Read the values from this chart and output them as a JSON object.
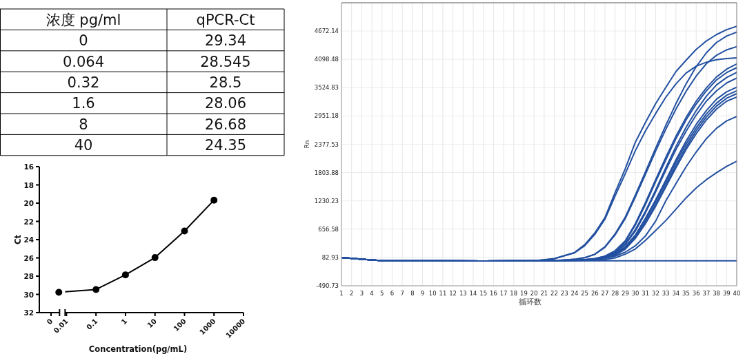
{
  "chart_data": [
    {
      "type": "other",
      "xlabel": "浓度 pg/ml",
      "ylabel": "qPCR-Ct",
      "categories": [
        "0",
        "0.064",
        "0.32",
        "1.6",
        "8",
        "40"
      ],
      "values": [
        29.34,
        28.545,
        28.5,
        28.06,
        26.68,
        24.35
      ],
      "data_labels": true
    },
    {
      "type": "line",
      "xlabel": "Concentration(pg/mL)",
      "ylabel": "Ct",
      "log": "x",
      "x": [
        0.0055,
        0.1,
        1,
        10,
        100,
        1000
      ],
      "values": [
        29.77,
        29.47,
        27.86,
        25.97,
        23.06,
        19.67
      ],
      "color": "#000000",
      "marker": "circle",
      "xlim": [
        0.0012,
        10000
      ],
      "xticks": [
        {
          "value": 0.003,
          "label": "0"
        },
        0.01,
        0.1,
        1,
        10,
        100,
        1000,
        10000
      ],
      "ylim": [
        32,
        16
      ],
      "yticks": [
        16,
        18,
        20,
        22,
        24,
        26,
        28,
        30,
        32
      ]
    },
    {
      "type": "line",
      "xlabel": "循环数",
      "ylabel": "Rn",
      "grid": true,
      "xlim": [
        1,
        40
      ],
      "ylim": [
        -490.73,
        5245.79
      ],
      "xticks": [
        1,
        2,
        3,
        4,
        5,
        6,
        7,
        8,
        9,
        10,
        11,
        12,
        13,
        14,
        15,
        16,
        17,
        18,
        19,
        20,
        21,
        22,
        23,
        24,
        25,
        26,
        27,
        28,
        29,
        30,
        31,
        32,
        33,
        34,
        35,
        36,
        37,
        38,
        39,
        40
      ],
      "yticks": [
        -490.73,
        82.93,
        656.58,
        1230.23,
        1803.88,
        2377.53,
        2951.18,
        3524.83,
        4098.48,
        4672.14
      ],
      "x": [
        1,
        3,
        5,
        10,
        15,
        20,
        22,
        24,
        25,
        26,
        27,
        28,
        29,
        30,
        31,
        32,
        33,
        34,
        35,
        36,
        37,
        38,
        39,
        40
      ],
      "series": [
        {
          "color": "#2350a0",
          "values": [
            83,
            45,
            20,
            15,
            12,
            15,
            60,
            185,
            341,
            581,
            893,
            1400,
            1880,
            2420,
            2820,
            3200,
            3530,
            3850,
            4080,
            4300,
            4470,
            4600,
            4700,
            4768
          ]
        },
        {
          "color": "#2350a0",
          "values": [
            83,
            45,
            20,
            15,
            12,
            15,
            55,
            175,
            320,
            550,
            860,
            1330,
            1780,
            2250,
            2650,
            3000,
            3330,
            3600,
            3820,
            3960,
            4040,
            4090,
            4115,
            4128
          ]
        },
        {
          "color": "#2350a0",
          "values": [
            83,
            45,
            20,
            15,
            12,
            15,
            20,
            45,
            80,
            150,
            300,
            560,
            900,
            1350,
            1820,
            2300,
            2760,
            3200,
            3600,
            3950,
            4230,
            4440,
            4570,
            4649
          ]
        },
        {
          "color": "#2350a0",
          "values": [
            83,
            45,
            20,
            15,
            12,
            15,
            20,
            45,
            78,
            145,
            290,
            540,
            870,
            1310,
            1770,
            2240,
            2680,
            3090,
            3450,
            3760,
            4010,
            4180,
            4290,
            4355
          ]
        },
        {
          "color": "#2350a0",
          "values": [
            83,
            45,
            20,
            15,
            12,
            15,
            20,
            30,
            40,
            60,
            110,
            220,
            420,
            770,
            1200,
            1660,
            2110,
            2540,
            2920,
            3250,
            3520,
            3740,
            3900,
            4004
          ]
        },
        {
          "color": "#2350a0",
          "values": [
            83,
            45,
            20,
            15,
            12,
            15,
            20,
            30,
            40,
            58,
            105,
            210,
            400,
            740,
            1160,
            1620,
            2060,
            2490,
            2870,
            3190,
            3460,
            3680,
            3830,
            3930
          ]
        },
        {
          "color": "#2350a0",
          "values": [
            83,
            45,
            20,
            15,
            12,
            15,
            20,
            28,
            36,
            52,
            95,
            190,
            360,
            650,
            1020,
            1450,
            1900,
            2330,
            2720,
            3060,
            3350,
            3580,
            3730,
            3834
          ]
        },
        {
          "color": "#2350a0",
          "values": [
            83,
            45,
            20,
            15,
            12,
            15,
            20,
            28,
            35,
            50,
            90,
            180,
            340,
            620,
            990,
            1410,
            1850,
            2270,
            2640,
            2970,
            3250,
            3460,
            3620,
            3720
          ]
        },
        {
          "color": "#2350a0",
          "values": [
            83,
            45,
            20,
            15,
            12,
            15,
            20,
            26,
            32,
            45,
            80,
            160,
            300,
            540,
            880,
            1250,
            1650,
            2060,
            2440,
            2780,
            3060,
            3290,
            3440,
            3534
          ]
        },
        {
          "color": "#2350a0",
          "values": [
            83,
            45,
            20,
            15,
            12,
            15,
            20,
            26,
            31,
            43,
            76,
            150,
            285,
            520,
            850,
            1220,
            1610,
            2010,
            2380,
            2710,
            2990,
            3210,
            3370,
            3460
          ]
        },
        {
          "color": "#2350a0",
          "values": [
            83,
            45,
            20,
            15,
            12,
            15,
            20,
            25,
            30,
            40,
            70,
            140,
            265,
            490,
            800,
            1160,
            1550,
            1950,
            2320,
            2650,
            2930,
            3150,
            3310,
            3403
          ]
        },
        {
          "color": "#2350a0",
          "values": [
            83,
            45,
            20,
            15,
            12,
            15,
            20,
            25,
            30,
            38,
            66,
            130,
            250,
            470,
            770,
            1120,
            1510,
            1900,
            2270,
            2590,
            2870,
            3090,
            3250,
            3336
          ]
        },
        {
          "color": "#2350a0",
          "values": [
            83,
            45,
            20,
            15,
            12,
            15,
            20,
            22,
            30,
            45,
            65,
            110,
            190,
            320,
            520,
            820,
            1230,
            1580,
            1920,
            2220,
            2490,
            2700,
            2850,
            2939
          ]
        },
        {
          "color": "#2350a0",
          "values": [
            83,
            45,
            20,
            15,
            12,
            15,
            18,
            20,
            22,
            28,
            40,
            75,
            150,
            255,
            430,
            630,
            830,
            1060,
            1290,
            1490,
            1660,
            1800,
            1930,
            2033
          ]
        },
        {
          "color": "#2350a0",
          "values": [
            83,
            45,
            20,
            15,
            12,
            15,
            15,
            15,
            15,
            15,
            15,
            15,
            15,
            15,
            15,
            15,
            15,
            15,
            15,
            15,
            15,
            15,
            15,
            15
          ]
        }
      ]
    }
  ]
}
